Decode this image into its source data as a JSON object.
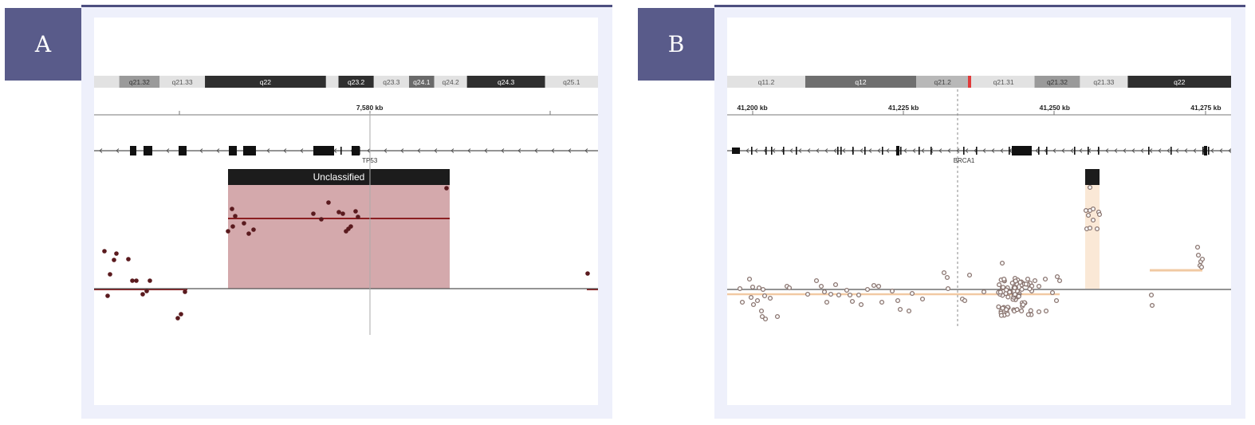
{
  "panels": [
    {
      "label": "A",
      "cytobands": [
        {
          "name": "q21.32",
          "start": 0.05,
          "end": 0.13,
          "color": "#9a9a9a",
          "text": "#333333"
        },
        {
          "name": "q21.33",
          "start": 0.13,
          "end": 0.22,
          "color": "#e2e2e2",
          "text": "#555555"
        },
        {
          "name": "q22",
          "start": 0.22,
          "end": 0.46,
          "color": "#2f2f2f",
          "text": "#ffffff"
        },
        {
          "name": "q23.2",
          "start": 0.485,
          "end": 0.555,
          "color": "#2f2f2f",
          "text": "#ffffff"
        },
        {
          "name": "q23.3",
          "start": 0.555,
          "end": 0.625,
          "color": "#e2e2e2",
          "text": "#555555"
        },
        {
          "name": "q24.1",
          "start": 0.625,
          "end": 0.675,
          "color": "#6a6a6a",
          "text": "#ffffff"
        },
        {
          "name": "q24.2",
          "start": 0.675,
          "end": 0.74,
          "color": "#e2e2e2",
          "text": "#555555"
        },
        {
          "name": "q24.3",
          "start": 0.74,
          "end": 0.895,
          "color": "#2f2f2f",
          "text": "#ffffff"
        },
        {
          "name": "q25.1",
          "start": 0.895,
          "end": 1.0,
          "color": "#e2e2e2",
          "text": "#555555"
        }
      ],
      "ruler_labels": [
        {
          "text": "7,580 kb",
          "pos": 0.547
        }
      ],
      "gene": {
        "name": "TP53",
        "label_pos": 0.547
      },
      "segment": {
        "label": "Unclassified",
        "color": "#d4a9ac",
        "header_color": "#1c1c1c",
        "line_color": "#8b1f22"
      },
      "point_color": "#5a1a1e",
      "point_style": "filled"
    },
    {
      "label": "B",
      "cytobands": [
        {
          "name": "q11.2",
          "start": 0.0,
          "end": 0.155,
          "color": "#e2e2e2",
          "text": "#555555"
        },
        {
          "name": "q12",
          "start": 0.155,
          "end": 0.375,
          "color": "#6f6f6f",
          "text": "#ffffff"
        },
        {
          "name": "q21.2",
          "start": 0.375,
          "end": 0.48,
          "color": "#b8b8b8",
          "text": "#444444"
        },
        {
          "name": "q21.31",
          "start": 0.487,
          "end": 0.61,
          "color": "#e2e2e2",
          "text": "#555555"
        },
        {
          "name": "q21.32",
          "start": 0.61,
          "end": 0.7,
          "color": "#9a9a9a",
          "text": "#333333"
        },
        {
          "name": "q21.33",
          "start": 0.7,
          "end": 0.795,
          "color": "#e2e2e2",
          "text": "#555555"
        },
        {
          "name": "q22",
          "start": 0.795,
          "end": 1.0,
          "color": "#2f2f2f",
          "text": "#ffffff"
        }
      ],
      "ruler_labels": [
        {
          "text": "41,200 kb",
          "pos": 0.05
        },
        {
          "text": "41,225 kb",
          "pos": 0.35
        },
        {
          "text": "41,250 kb",
          "pos": 0.65
        },
        {
          "text": "41,275 kb",
          "pos": 0.95
        }
      ],
      "gene": {
        "name": "BRCA1",
        "label_pos": 0.47
      },
      "segment": {
        "label": "",
        "color": "#fae8d6",
        "header_color": "#1c1c1c",
        "line_color": "#f1c9a3"
      },
      "point_color": "#8a7570",
      "point_style": "open"
    }
  ],
  "colors": {
    "frame": "#eef0fb",
    "topline": "#4d4f80",
    "label_bg": "#595b8a"
  }
}
